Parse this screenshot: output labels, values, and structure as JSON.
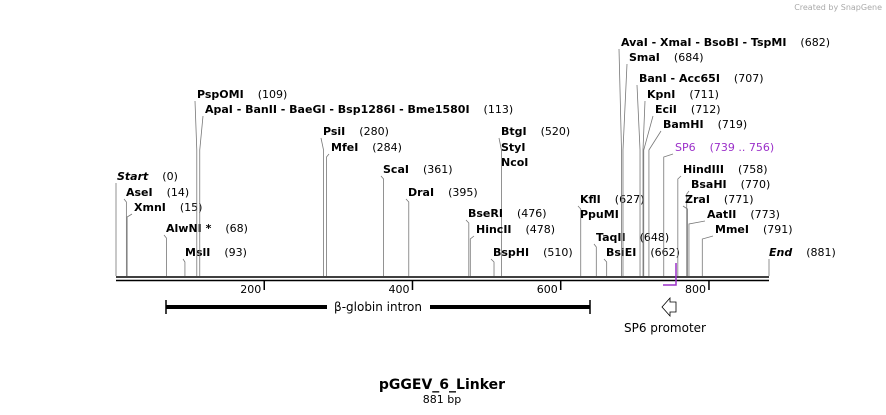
{
  "credit": "Created by SnapGene",
  "title": "pGGEV_6_Linker",
  "subtitle": "881 bp",
  "ruler": {
    "min": 0,
    "max": 881,
    "ticks": [
      200,
      400,
      600,
      800
    ]
  },
  "sites": [
    {
      "name": "Start",
      "position": {
        "value": 0,
        "label": "(0)"
      }
    },
    {
      "name": "AseI",
      "position": {
        "value": 14,
        "label": "(14)"
      }
    },
    {
      "name": "XmnI",
      "position": {
        "value": 15,
        "label": "(15)"
      }
    },
    {
      "name": "AlwNI *",
      "position": {
        "value": 68,
        "label": "(68)"
      }
    },
    {
      "name": "MslI",
      "position": {
        "value": 93,
        "label": "(93)"
      }
    },
    {
      "name": "PspOMI",
      "position": {
        "value": 109,
        "label": "(109)"
      }
    },
    {
      "name": "ApaI  -  BanII  -  BaeGI  -  Bsp1286I  -  Bme1580I",
      "position": {
        "value": 113,
        "label": "(113)"
      }
    },
    {
      "name": "PsiI",
      "position": {
        "value": 280,
        "label": "(280)"
      }
    },
    {
      "name": "MfeI",
      "position": {
        "value": 284,
        "label": "(284)"
      }
    },
    {
      "name": "ScaI",
      "position": {
        "value": 361,
        "label": "(361)"
      }
    },
    {
      "name": "DraI",
      "position": {
        "value": 395,
        "label": "(395)"
      }
    },
    {
      "name": "BtgI",
      "position": {
        "value": 520,
        "label": "(520)"
      }
    },
    {
      "name": "StyI"
    },
    {
      "name": "NcoI"
    },
    {
      "name": "BseRI",
      "position": {
        "value": 476,
        "label": "(476)"
      }
    },
    {
      "name": "HincII",
      "position": {
        "value": 478,
        "label": "(478)"
      }
    },
    {
      "name": "BspHI",
      "position": {
        "value": 510,
        "label": "(510)"
      }
    },
    {
      "name": "KflI",
      "position": {
        "value": 627,
        "label": "(627)"
      }
    },
    {
      "name": "PpuMI"
    },
    {
      "name": "TaqII",
      "position": {
        "value": 648,
        "label": "(648)"
      }
    },
    {
      "name": "BsiEI",
      "position": {
        "value": 662,
        "label": "(662)"
      }
    },
    {
      "name": "AvaI  -  XmaI  -  BsoBI  -  TspMI",
      "position": {
        "value": 682,
        "label": "(682)"
      }
    },
    {
      "name": "SmaI",
      "position": {
        "value": 684,
        "label": "(684)"
      }
    },
    {
      "name": "BanI  -  Acc65I",
      "position": {
        "value": 707,
        "label": "(707)"
      }
    },
    {
      "name": "KpnI",
      "position": {
        "value": 711,
        "label": "(711)"
      }
    },
    {
      "name": "EciI",
      "position": {
        "value": 712,
        "label": "(712)"
      }
    },
    {
      "name": "BamHI",
      "position": {
        "value": 719,
        "label": "(719)"
      }
    },
    {
      "name": "SP6",
      "position": {
        "value": 739,
        "label": "(739 .. 756)"
      }
    },
    {
      "name": "HindIII",
      "position": {
        "value": 758,
        "label": "(758)"
      }
    },
    {
      "name": "BsaHI",
      "position": {
        "value": 770,
        "label": "(770)"
      }
    },
    {
      "name": "ZraI",
      "position": {
        "value": 771,
        "label": "(771)"
      }
    },
    {
      "name": "AatII",
      "position": {
        "value": 773,
        "label": "(773)"
      }
    },
    {
      "name": "MmeI",
      "position": {
        "value": 791,
        "label": "(791)"
      }
    },
    {
      "name": "End",
      "position": {
        "value": 881,
        "label": "(881)"
      }
    }
  ],
  "features": [
    {
      "label": "β-globin intron"
    },
    {
      "label": "SP6 promoter"
    }
  ]
}
